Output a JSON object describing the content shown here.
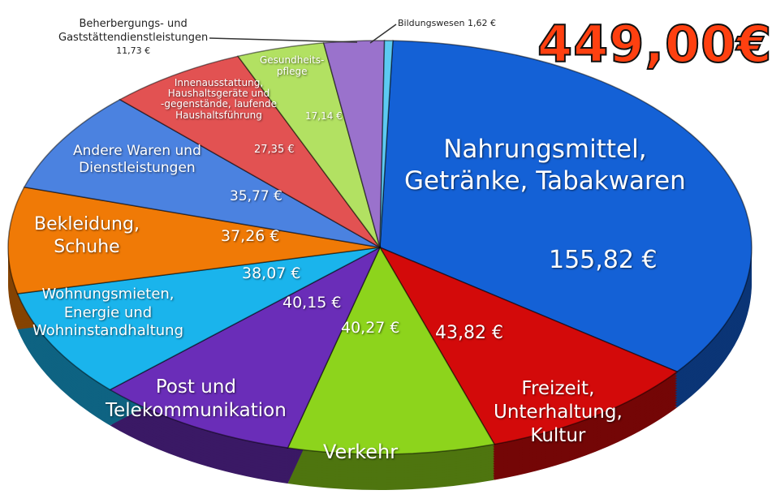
{
  "total": "449,00€",
  "chart_data": {
    "type": "pie",
    "style": "3d",
    "unit": "€",
    "slices": [
      {
        "label": "Nahrungsmittel, Getränke, Tabakwaren",
        "value": 155.82,
        "value_label": "155,82 €",
        "color": "#1461d6"
      },
      {
        "label": "Freizeit, Unterhaltung, Kultur",
        "value": 43.82,
        "value_label": "43,82 €",
        "color": "#d30a0a"
      },
      {
        "label": "Verkehr",
        "value": 40.27,
        "value_label": "40,27 €",
        "color": "#8dd41c"
      },
      {
        "label": "Post und Telekommunikation",
        "value": 40.15,
        "value_label": "40,15 €",
        "color": "#6a2db8"
      },
      {
        "label": "Wohnungsmieten, Energie und Wohninstandhaltung",
        "value": 38.07,
        "value_label": "38,07 €",
        "color": "#1ab4ec"
      },
      {
        "label": "Bekleidung, Schuhe",
        "value": 37.26,
        "value_label": "37,26 €",
        "color": "#f07a06"
      },
      {
        "label": "Andere Waren und Dienstleistungen",
        "value": 35.77,
        "value_label": "35,77 €",
        "color": "#4b82e0"
      },
      {
        "label": "Innenausstattung, Haushaltsgeräte und -gegenstände, laufende Haushaltsführung",
        "value": 27.35,
        "value_label": "27,35 €",
        "color": "#e25252"
      },
      {
        "label": "Gesundheitspflege",
        "value": 17.14,
        "value_label": "17,14 €",
        "color": "#b2e162"
      },
      {
        "label": "Beherbergungs- und Gaststättendienstleistungen",
        "value": 11.73,
        "value_label": "11,73 €",
        "color": "#9a72cc"
      },
      {
        "label": "Bildungswesen",
        "value": 1.62,
        "value_label": "1,62 €",
        "color": "#5ccaf2"
      }
    ]
  },
  "labels": {
    "nahrung": [
      "Nahrungsmittel,",
      "Getränke, Tabakwaren"
    ],
    "freizeit": [
      "Freizeit,",
      "Unterhaltung,",
      "Kultur"
    ],
    "verkehr": "Verkehr",
    "post": [
      "Post und",
      "Telekommunikation"
    ],
    "wohnen": [
      "Wohnungsmieten,",
      "Energie und",
      "Wohninstandhaltung"
    ],
    "bekleidung": [
      "Bekleidung,",
      "Schuhe"
    ],
    "andere": [
      "Andere Waren und",
      "Dienstleistungen"
    ],
    "innen": [
      "Innenausstattung,",
      "Haushaltsgeräte und",
      "-gegenstände, laufende",
      "Haushaltsführung"
    ],
    "gesundheit": [
      "Gesundheits-",
      "pflege"
    ],
    "beherbergung": [
      "Beherbergungs- und",
      "Gaststättendienstleistungen"
    ],
    "bildung": "Bildungswesen 1,62 €"
  }
}
